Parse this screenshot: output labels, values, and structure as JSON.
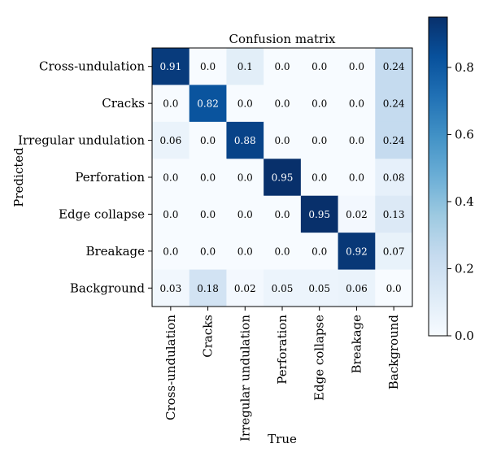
{
  "chart_data": {
    "type": "heatmap",
    "title": "Confusion matrix",
    "xlabel": "True",
    "ylabel": "Predicted",
    "x_categories": [
      "Cross-undulation",
      "Cracks",
      "Irregular undulation",
      "Perforation",
      "Edge collapse",
      "Breakage",
      "Background"
    ],
    "y_categories": [
      "Cross-undulation",
      "Cracks",
      "Irregular undulation",
      "Perforation",
      "Edge collapse",
      "Breakage",
      "Background"
    ],
    "values": [
      [
        0.91,
        0.0,
        0.1,
        0.0,
        0.0,
        0.0,
        0.24
      ],
      [
        0.0,
        0.82,
        0.0,
        0.0,
        0.0,
        0.0,
        0.24
      ],
      [
        0.06,
        0.0,
        0.88,
        0.0,
        0.0,
        0.0,
        0.24
      ],
      [
        0.0,
        0.0,
        0.0,
        0.95,
        0.0,
        0.0,
        0.08
      ],
      [
        0.0,
        0.0,
        0.0,
        0.0,
        0.95,
        0.02,
        0.13
      ],
      [
        0.0,
        0.0,
        0.0,
        0.0,
        0.0,
        0.92,
        0.07
      ],
      [
        0.03,
        0.18,
        0.02,
        0.05,
        0.05,
        0.06,
        0.0
      ]
    ],
    "cell_labels": [
      [
        "0.91",
        "0.0",
        "0.1",
        "0.0",
        "0.0",
        "0.0",
        "0.24"
      ],
      [
        "0.0",
        "0.82",
        "0.0",
        "0.0",
        "0.0",
        "0.0",
        "0.24"
      ],
      [
        "0.06",
        "0.0",
        "0.88",
        "0.0",
        "0.0",
        "0.0",
        "0.24"
      ],
      [
        "0.0",
        "0.0",
        "0.0",
        "0.95",
        "0.0",
        "0.0",
        "0.08"
      ],
      [
        "0.0",
        "0.0",
        "0.0",
        "0.0",
        "0.95",
        "0.02",
        "0.13"
      ],
      [
        "0.0",
        "0.0",
        "0.0",
        "0.0",
        "0.0",
        "0.92",
        "0.07"
      ],
      [
        "0.03",
        "0.18",
        "0.02",
        "0.05",
        "0.05",
        "0.06",
        "0.0"
      ]
    ],
    "colorbar": {
      "range": [
        0.0,
        0.95
      ],
      "ticks": [
        0.0,
        0.2,
        0.4,
        0.6,
        0.8
      ],
      "tick_labels": [
        "0.0",
        "0.2",
        "0.4",
        "0.6",
        "0.8"
      ]
    },
    "colormap": "Blues",
    "colors": {
      "low": "#f7fbff",
      "high": "#08306b",
      "text_dark": "#000000",
      "text_light": "#ffffff"
    }
  }
}
